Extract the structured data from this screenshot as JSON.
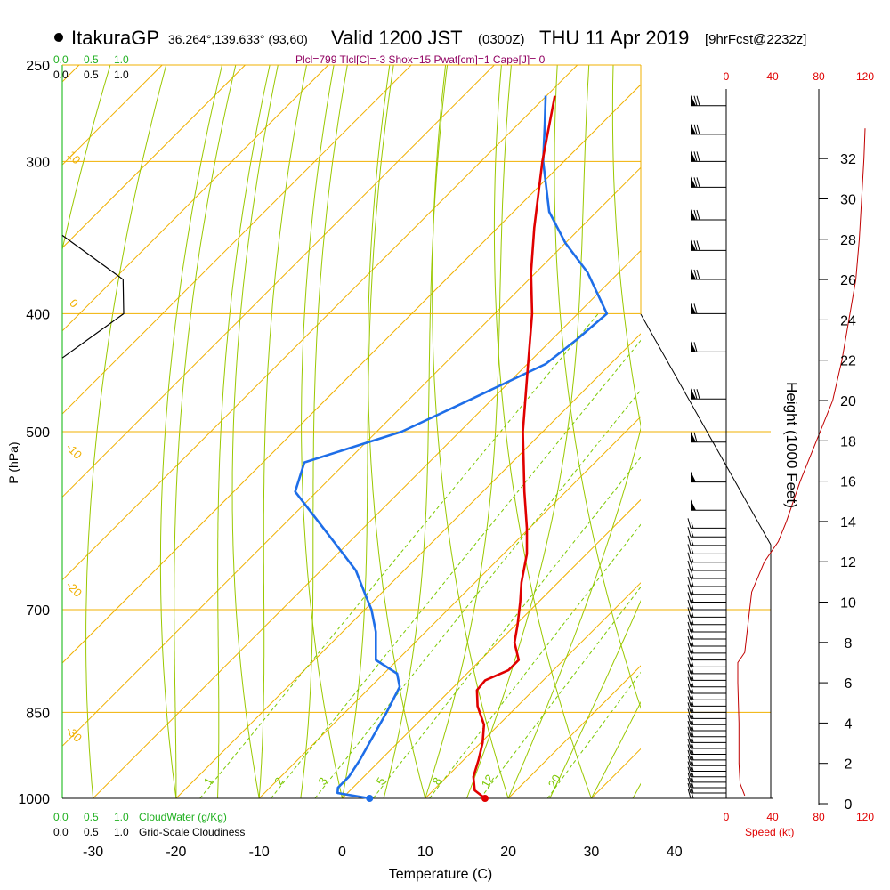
{
  "header": {
    "station": "ItakuraGP",
    "coords": "36.264°,139.633° (93,60)",
    "valid_prefix": "Valid 1200 JST",
    "zulu": "(0300Z)",
    "date": "THU 11 Apr 2019",
    "forecast": "[9hrFcst@2232z]",
    "indices": "Plcl=799 Tlcl[C]=-3 Shox=15 Pwat[cm]=1 Cape[J]= 0"
  },
  "colors": {
    "isotherm": "#f0b000",
    "isobar": "#f0b000",
    "dry_adiabat": "#9ac800",
    "moist_adiabat": "#9ac800",
    "mixing_ratio": "#7ac800",
    "temperature": "#e00000",
    "dewpoint": "#1e6ee8",
    "cloudwater": "#20b020",
    "speed": "#e00000",
    "indices": "#900060"
  },
  "labels": {
    "pressure_axis": "P (hPa)",
    "temp_axis": "Temperature (C)",
    "height_axis": "Height (1000 Feet)",
    "cloudwater": "CloudWater (g/Kg)",
    "cloudiness": "Grid-Scale Cloudiness",
    "speed": "Speed (kt)"
  },
  "chart_data": {
    "type": "skew-t",
    "x_ticks": [
      -30,
      -20,
      -10,
      0,
      10,
      20,
      30,
      40
    ],
    "pressure_levels": [
      250,
      300,
      400,
      500,
      700,
      850,
      1000
    ],
    "temperature": [
      {
        "p": 1000,
        "t": 17.2
      },
      {
        "p": 985,
        "t": 15.0
      },
      {
        "p": 960,
        "t": 13.2
      },
      {
        "p": 930,
        "t": 11.8
      },
      {
        "p": 900,
        "t": 10.2
      },
      {
        "p": 870,
        "t": 8.2
      },
      {
        "p": 840,
        "t": 5.2
      },
      {
        "p": 815,
        "t": 3.2
      },
      {
        "p": 800,
        "t": 3.0
      },
      {
        "p": 785,
        "t": 4.6
      },
      {
        "p": 770,
        "t": 4.6
      },
      {
        "p": 745,
        "t": 2.0
      },
      {
        "p": 720,
        "t": 0.2
      },
      {
        "p": 690,
        "t": -2.2
      },
      {
        "p": 665,
        "t": -4.4
      },
      {
        "p": 630,
        "t": -7.2
      },
      {
        "p": 600,
        "t": -10.3
      },
      {
        "p": 560,
        "t": -15.0
      },
      {
        "p": 500,
        "t": -22.4
      },
      {
        "p": 450,
        "t": -28.6
      },
      {
        "p": 400,
        "t": -35.5
      },
      {
        "p": 370,
        "t": -40.6
      },
      {
        "p": 340,
        "t": -45.6
      },
      {
        "p": 300,
        "t": -52.6
      },
      {
        "p": 265,
        "t": -59.0
      }
    ],
    "dewpoint": [
      {
        "p": 1000,
        "t": 3.3
      },
      {
        "p": 990,
        "t": -1.2
      },
      {
        "p": 980,
        "t": -1.8
      },
      {
        "p": 960,
        "t": -1.8
      },
      {
        "p": 930,
        "t": -2.5
      },
      {
        "p": 850,
        "t": -5.0
      },
      {
        "p": 810,
        "t": -6.5
      },
      {
        "p": 790,
        "t": -8.4
      },
      {
        "p": 770,
        "t": -12.6
      },
      {
        "p": 730,
        "t": -16.0
      },
      {
        "p": 700,
        "t": -19.2
      },
      {
        "p": 680,
        "t": -21.8
      },
      {
        "p": 650,
        "t": -25.8
      },
      {
        "p": 600,
        "t": -34.8
      },
      {
        "p": 560,
        "t": -42.6
      },
      {
        "p": 530,
        "t": -45.0
      },
      {
        "p": 500,
        "t": -37.0
      },
      {
        "p": 470,
        "t": -32.5
      },
      {
        "p": 440,
        "t": -27.8
      },
      {
        "p": 420,
        "t": -27.0
      },
      {
        "p": 400,
        "t": -26.5
      },
      {
        "p": 370,
        "t": -33.8
      },
      {
        "p": 350,
        "t": -40.0
      },
      {
        "p": 330,
        "t": -45.7
      },
      {
        "p": 300,
        "t": -52.5
      },
      {
        "p": 280,
        "t": -56.7
      },
      {
        "p": 265,
        "t": -60.1
      }
    ],
    "surface_temperature_marker": 17.2,
    "surface_dewpoint_marker": 3.3,
    "isotherm_labels": [
      {
        "t": -10
      },
      {
        "t": 0
      },
      {
        "t": 10
      },
      {
        "t": 20
      },
      {
        "t": 30
      }
    ],
    "dry_adiabat_labels": [
      "10",
      "0",
      "-10",
      "-20",
      "-30"
    ],
    "mixing_ratio_labels": [
      "1",
      "2",
      "3",
      "5",
      "8",
      "12",
      "20"
    ],
    "cloud_axis_ticks": [
      "0.0",
      "0.5",
      "1.0"
    ],
    "cloudiness_ticks": [
      "0.0",
      "0.5",
      "1.0"
    ],
    "cloudiness_profile": [
      {
        "p": 345,
        "v": 0.0
      },
      {
        "p": 375,
        "v": 0.99
      },
      {
        "p": 400,
        "v": 1.0
      },
      {
        "p": 435,
        "v": 0.0
      }
    ],
    "speed_ticks": [
      0,
      40,
      80,
      120
    ],
    "speed_profile": [
      {
        "h": 0.4,
        "s": 16
      },
      {
        "h": 1.0,
        "s": 12
      },
      {
        "h": 2.0,
        "s": 11
      },
      {
        "h": 4.0,
        "s": 11
      },
      {
        "h": 6.0,
        "s": 10
      },
      {
        "h": 7.0,
        "s": 10
      },
      {
        "h": 7.5,
        "s": 16
      },
      {
        "h": 9.0,
        "s": 19
      },
      {
        "h": 10.5,
        "s": 22
      },
      {
        "h": 12.0,
        "s": 33
      },
      {
        "h": 13.0,
        "s": 45
      },
      {
        "h": 14.0,
        "s": 52
      },
      {
        "h": 16.0,
        "s": 64
      },
      {
        "h": 18.0,
        "s": 78
      },
      {
        "h": 20.0,
        "s": 92
      },
      {
        "h": 22.0,
        "s": 100
      },
      {
        "h": 24.0,
        "s": 106
      },
      {
        "h": 26.0,
        "s": 112
      },
      {
        "h": 28.0,
        "s": 115
      },
      {
        "h": 30.0,
        "s": 117
      },
      {
        "h": 32.0,
        "s": 119
      },
      {
        "h": 33.5,
        "s": 120
      }
    ],
    "height_ticks": [
      0,
      2,
      4,
      6,
      8,
      10,
      12,
      14,
      16,
      18,
      20,
      22,
      24,
      26,
      28,
      30,
      32
    ],
    "wind_barbs": [
      {
        "p": 1000,
        "speed": 20
      },
      {
        "p": 990,
        "speed": 20
      },
      {
        "p": 980,
        "speed": 20
      },
      {
        "p": 970,
        "speed": 20
      },
      {
        "p": 960,
        "speed": 20
      },
      {
        "p": 950,
        "speed": 20
      },
      {
        "p": 940,
        "speed": 20
      },
      {
        "p": 930,
        "speed": 20
      },
      {
        "p": 920,
        "speed": 20
      },
      {
        "p": 910,
        "speed": 20
      },
      {
        "p": 900,
        "speed": 20
      },
      {
        "p": 890,
        "speed": 20
      },
      {
        "p": 880,
        "speed": 20
      },
      {
        "p": 870,
        "speed": 20
      },
      {
        "p": 860,
        "speed": 20
      },
      {
        "p": 850,
        "speed": 20
      },
      {
        "p": 840,
        "speed": 20
      },
      {
        "p": 830,
        "speed": 20
      },
      {
        "p": 820,
        "speed": 20
      },
      {
        "p": 810,
        "speed": 20
      },
      {
        "p": 800,
        "speed": 20
      },
      {
        "p": 790,
        "speed": 20
      },
      {
        "p": 780,
        "speed": 20
      },
      {
        "p": 770,
        "speed": 20
      },
      {
        "p": 760,
        "speed": 20
      },
      {
        "p": 750,
        "speed": 20
      },
      {
        "p": 740,
        "speed": 20
      },
      {
        "p": 730,
        "speed": 20
      },
      {
        "p": 720,
        "speed": 20
      },
      {
        "p": 710,
        "speed": 20
      },
      {
        "p": 700,
        "speed": 20
      },
      {
        "p": 690,
        "speed": 20
      },
      {
        "p": 680,
        "speed": 20
      },
      {
        "p": 670,
        "speed": 20
      },
      {
        "p": 660,
        "speed": 20
      },
      {
        "p": 650,
        "speed": 20
      },
      {
        "p": 640,
        "speed": 15
      },
      {
        "p": 630,
        "speed": 15
      },
      {
        "p": 620,
        "speed": 15
      },
      {
        "p": 610,
        "speed": 15
      },
      {
        "p": 600,
        "speed": 15
      },
      {
        "p": 580,
        "speed": 50
      },
      {
        "p": 550,
        "speed": 50
      },
      {
        "p": 510,
        "speed": 60
      },
      {
        "p": 470,
        "speed": 70
      },
      {
        "p": 430,
        "speed": 60
      },
      {
        "p": 400,
        "speed": 60
      },
      {
        "p": 375,
        "speed": 70
      },
      {
        "p": 355,
        "speed": 70
      },
      {
        "p": 335,
        "speed": 70
      },
      {
        "p": 315,
        "speed": 70
      },
      {
        "p": 300,
        "speed": 70
      },
      {
        "p": 285,
        "speed": 70
      },
      {
        "p": 270,
        "speed": 70
      }
    ]
  }
}
